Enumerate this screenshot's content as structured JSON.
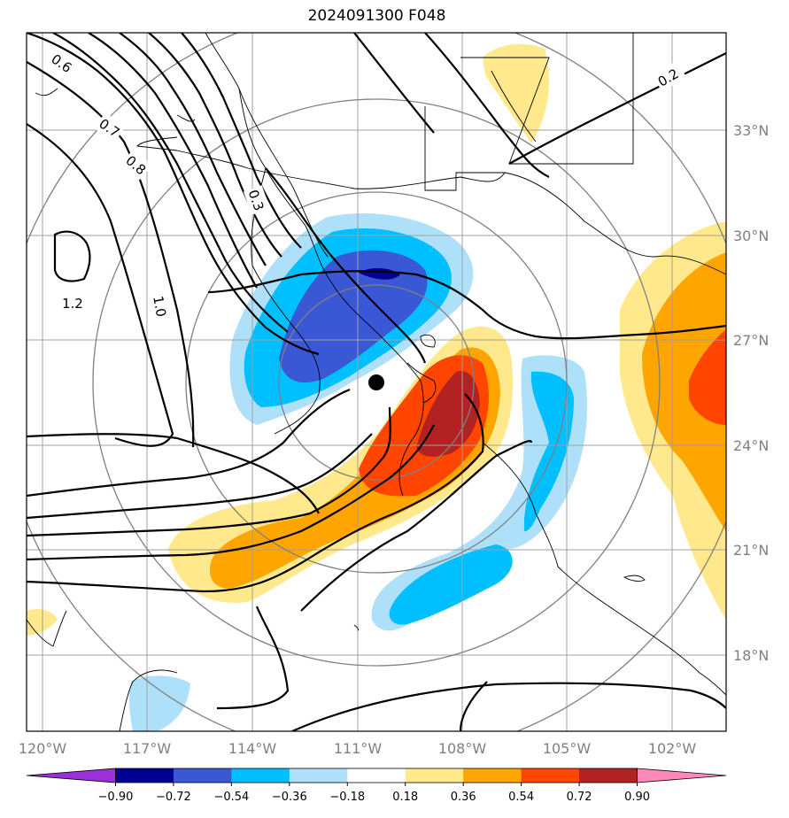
{
  "title": "2024091300 F048",
  "lat_labels": [
    "33°N",
    "30°N",
    "27°N",
    "24°N",
    "21°N",
    "18°N"
  ],
  "lon_labels": [
    "120°W",
    "117°W",
    "114°W",
    "111°W",
    "108°W",
    "105°W",
    "102°W"
  ],
  "contour_labels": [
    "0.6",
    "0.7",
    "0.8",
    "1.0",
    "1.2",
    "0.3",
    "0.2"
  ],
  "colorbar": {
    "ticks": [
      "−0.90",
      "−0.72",
      "−0.54",
      "−0.36",
      "−0.18",
      "0.18",
      "0.36",
      "0.54",
      "0.72",
      "0.90"
    ],
    "colors": [
      "#9b30d9",
      "#000093",
      "#3a58d6",
      "#00bfff",
      "#aee0fa",
      "#ffffff",
      "#ffe98c",
      "#ffa500",
      "#ff4500",
      "#b22222",
      "#ff88b8"
    ]
  },
  "colors": {
    "grid": "#a0a0a0",
    "range_ring": "#808080",
    "coast": "#000000",
    "center_marker": "#000000"
  }
}
